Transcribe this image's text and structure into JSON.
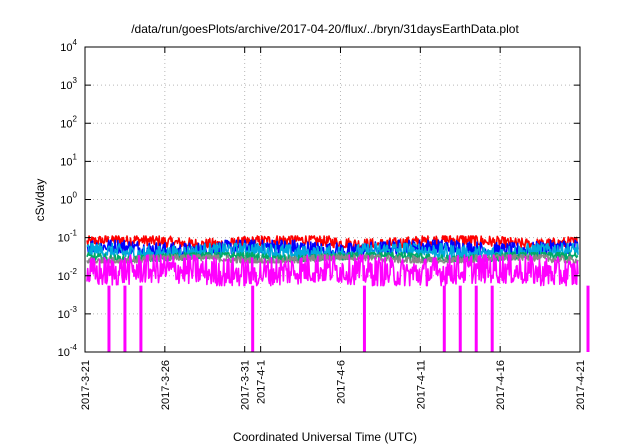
{
  "chart_data": {
    "type": "line",
    "title": "/data/run/goesPlots/archive/2017-04-20/flux/../bryn/31daysEarthData.plot",
    "xlabel": "Coordinated Universal Time (UTC)",
    "ylabel": "cSv/day",
    "yscale": "log",
    "ylim": [
      0.0001,
      10000
    ],
    "xlim": [
      "2017-03-21",
      "2017-04-21"
    ],
    "y_ticks": [
      {
        "base": "10",
        "exp": "-4"
      },
      {
        "base": "10",
        "exp": "-3"
      },
      {
        "base": "10",
        "exp": "-2"
      },
      {
        "base": "10",
        "exp": "-1"
      },
      {
        "base": "10",
        "exp": "0"
      },
      {
        "base": "10",
        "exp": "1"
      },
      {
        "base": "10",
        "exp": "2"
      },
      {
        "base": "10",
        "exp": "3"
      },
      {
        "base": "10",
        "exp": "4"
      }
    ],
    "x_ticks": [
      {
        "label": "2017-3-21",
        "date": "2017-03-21"
      },
      {
        "label": "2017-3-26",
        "date": "2017-03-26"
      },
      {
        "label": "2017-3-31",
        "date": "2017-03-31"
      },
      {
        "label": "2017-4-1",
        "date": "2017-04-01"
      },
      {
        "label": "2017-4-6",
        "date": "2017-04-06"
      },
      {
        "label": "2017-4-11",
        "date": "2017-04-11"
      },
      {
        "label": "2017-4-16",
        "date": "2017-04-16"
      },
      {
        "label": "2017-4-21",
        "date": "2017-04-21"
      }
    ],
    "grid": true,
    "legend": "none",
    "data_gap": [
      "2017-04-10",
      "2017-04-11"
    ],
    "series": [
      {
        "color": "#ff0000",
        "typical": 0.075,
        "low": 0.055,
        "high": 0.11
      },
      {
        "color": "#0000ff",
        "typical": 0.05,
        "low": 0.035,
        "high": 0.085
      },
      {
        "color": "#00aadd",
        "typical": 0.04,
        "low": 0.028,
        "high": 0.07
      },
      {
        "color": "#00aa66",
        "typical": 0.03,
        "low": 0.024,
        "high": 0.04
      },
      {
        "color": "#888888",
        "typical": 0.027,
        "low": 0.022,
        "high": 0.035
      },
      {
        "color": "#ff00ff",
        "typical": 0.012,
        "low": 0.0055,
        "high": 0.035,
        "dropouts": [
          "2017-03-22",
          "2017-03-23",
          "2017-03-24",
          "2017-03-31",
          "2017-04-07",
          "2017-04-12",
          "2017-04-13",
          "2017-04-14",
          "2017-04-15",
          "2017-04-21"
        ]
      }
    ]
  }
}
